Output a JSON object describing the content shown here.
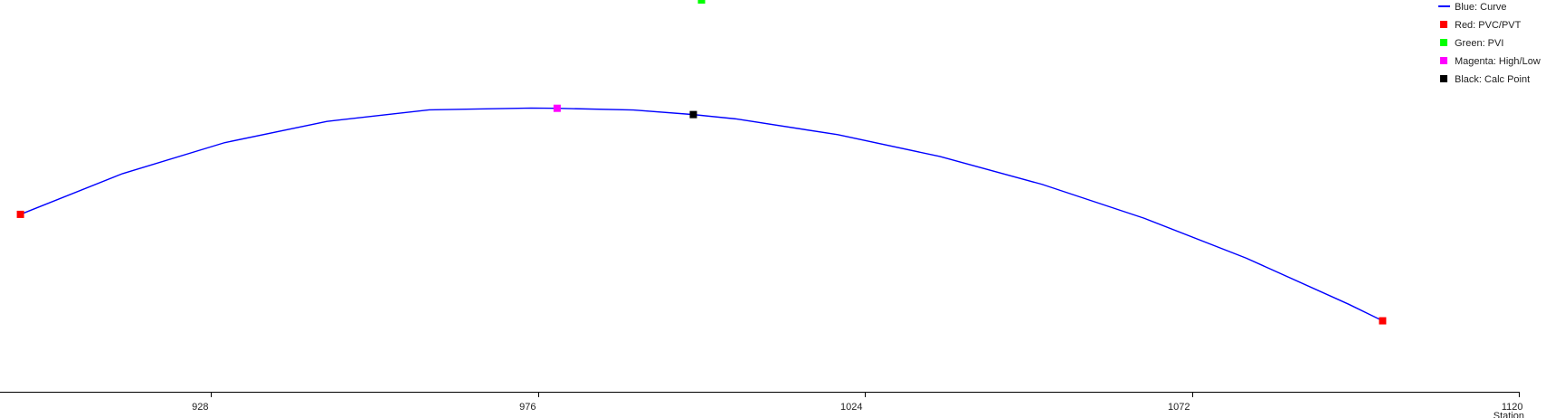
{
  "chart_data": {
    "type": "line",
    "xlabel": "Station",
    "ylabel": "",
    "xlim": [
      897,
      1120
    ],
    "ylim": [
      -78,
      28
    ],
    "x_ticks": [
      928,
      976,
      1024,
      1072,
      1120
    ],
    "grid": false,
    "legend_position": "top-right",
    "legend": [
      {
        "label": "Blue: Curve",
        "color": "#0000ff",
        "marker": "line"
      },
      {
        "label": "Red: PVC/PVT",
        "color": "#ff0000",
        "marker": "square"
      },
      {
        "label": "Green: PVI",
        "color": "#00ff00",
        "marker": "square"
      },
      {
        "label": "Magenta: High/Low",
        "color": "#ff00ff",
        "marker": "square"
      },
      {
        "label": "Black: Calc Point",
        "color": "#000000",
        "marker": "square"
      }
    ],
    "series": [
      {
        "color": "#0000ff",
        "x": [
          900.0,
          915.0,
          930.0,
          945.0,
          960.0,
          975.0,
          978.8,
          990.0,
          998.8,
          1005.0,
          1020.0,
          1035.0,
          1050.0,
          1065.0,
          1080.0,
          1095.0,
          1100.0
        ],
        "y": [
          -30.0,
          -18.98,
          -10.59,
          -4.84,
          -1.72,
          -1.24,
          -1.3,
          -1.77,
          -3.0,
          -4.16,
          -8.44,
          -14.34,
          -21.88,
          -31.06,
          -41.86,
          -54.3,
          -58.8
        ]
      }
    ],
    "points": {
      "pvc_pvt": {
        "color": "#ff0000",
        "x": [
          900.0,
          1100.0
        ],
        "y": [
          -30.0,
          -58.8
        ]
      },
      "pvi": {
        "color": "#00ff00",
        "x": [
          1000.0
        ],
        "y": [
          28.0
        ]
      },
      "high_low": {
        "color": "#ff00ff",
        "x": [
          978.8
        ],
        "y": [
          -1.3
        ]
      },
      "calc_point": {
        "color": "#000000",
        "x": [
          998.8
        ],
        "y": [
          -3.0
        ]
      }
    }
  }
}
